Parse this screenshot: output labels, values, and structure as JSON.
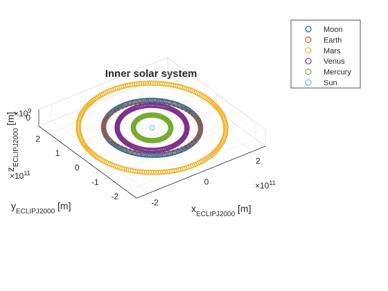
{
  "chart_data": {
    "type": "scatter",
    "title": "Inner solar system",
    "projection": "3d",
    "x_axis": {
      "label_main": "x",
      "label_sub": "ECLIPJ2000",
      "label_unit": " [m]",
      "ticks": [
        -2,
        0,
        2
      ],
      "multiplier_base": "×10",
      "multiplier_exp": "11",
      "range": [
        -250000000000,
        250000000000
      ]
    },
    "y_axis": {
      "label_main": "y",
      "label_sub": "ECLIPJ2000",
      "label_unit": " [m]",
      "ticks": [
        -2,
        -1,
        0,
        1,
        2
      ],
      "multiplier_base": "×10",
      "multiplier_exp": "11",
      "range": [
        -250000000000,
        250000000000
      ]
    },
    "z_axis": {
      "label_main": "z",
      "label_sub": "ECLIPJ2000",
      "label_unit": " [m]",
      "ticks": [
        0
      ],
      "multiplier_base": "×10",
      "multiplier_exp": "9",
      "range": [
        -1000000000,
        1000000000
      ]
    },
    "legend_position": "top-right",
    "series": [
      {
        "name": "Moon",
        "color": "#0072BD",
        "marker": "circle",
        "orbit_radius_m": 150000000000,
        "z_amp_m": 100000000
      },
      {
        "name": "Earth",
        "color": "#D95319",
        "marker": "circle",
        "orbit_radius_m": 150000000000,
        "z_amp_m": 0
      },
      {
        "name": "Mars",
        "color": "#EDB120",
        "marker": "circle",
        "orbit_radius_m": 228000000000,
        "z_amp_m": 500000000
      },
      {
        "name": "Venus",
        "color": "#7E2F8E",
        "marker": "circle",
        "orbit_radius_m": 108000000000,
        "z_amp_m": 400000000
      },
      {
        "name": "Mercury",
        "color": "#77AC30",
        "marker": "circle",
        "orbit_radius_m": 58000000000,
        "z_amp_m": 300000000
      },
      {
        "name": "Sun",
        "color": "#4DBEEE",
        "marker": "circle",
        "orbit_radius_m": 0,
        "z_amp_m": 0
      }
    ]
  }
}
